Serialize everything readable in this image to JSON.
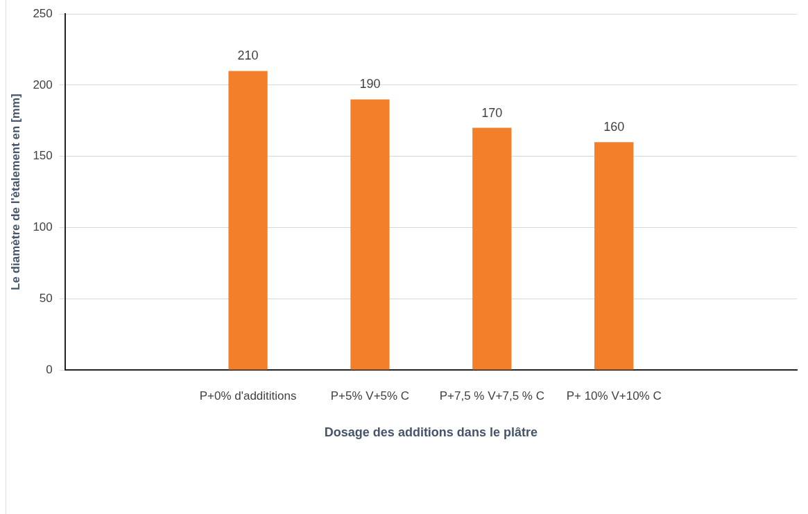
{
  "chart_data": {
    "type": "bar",
    "xlabel": "Dosage des additions dans le plâtre",
    "ylabel": "Le diamètre de l'ètalement en [mm]",
    "categories": [
      null,
      "P+0% d'addititions",
      "P+5% V+5% C",
      "P+7,5 % V+7,5 % C",
      "P+ 10% V+10% C",
      null
    ],
    "values": [
      null,
      210,
      190,
      170,
      160,
      null
    ],
    "color": "#f47f2a",
    "ylim": [
      0,
      250
    ],
    "yticks": [
      0,
      50,
      100,
      150,
      200,
      250
    ],
    "grid": "y",
    "data_labels": true,
    "legend": false
  }
}
